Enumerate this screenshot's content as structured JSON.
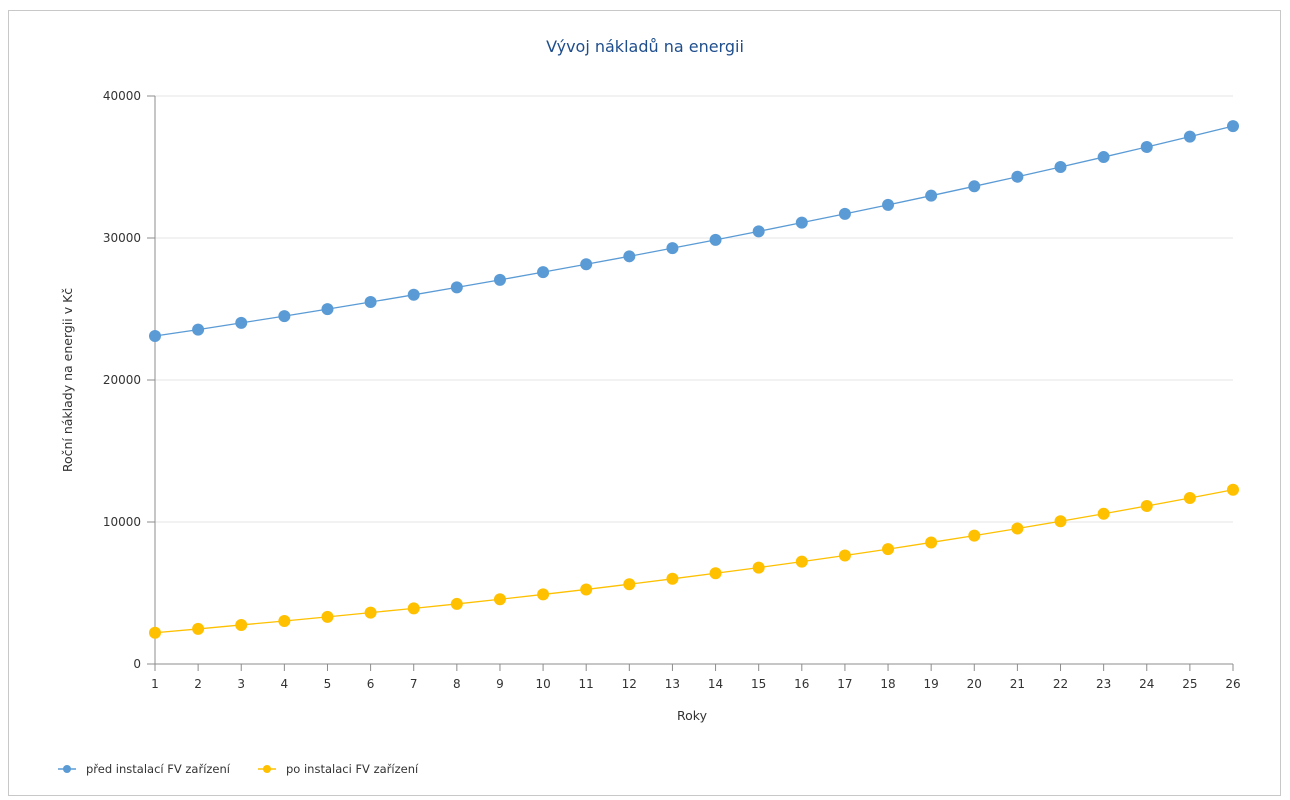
{
  "chart_data": {
    "type": "line",
    "title": "Vývoj nákladů na energii",
    "xlabel": "Roky",
    "ylabel": "Roční náklady na energii v Kč",
    "categories": [
      "1",
      "2",
      "3",
      "4",
      "5",
      "6",
      "7",
      "8",
      "9",
      "10",
      "11",
      "12",
      "13",
      "14",
      "15",
      "16",
      "17",
      "18",
      "19",
      "20",
      "21",
      "22",
      "23",
      "24",
      "25",
      "26"
    ],
    "ylim": [
      0,
      40000
    ],
    "yticks": [
      "0",
      "10000",
      "20000",
      "30000",
      "40000"
    ],
    "grid": "horizontal",
    "legend_position": "bottom-left",
    "series": [
      {
        "name": "před instalací FV zařízení",
        "color": "#5b9bd5",
        "values": [
          23100,
          23550,
          24020,
          24500,
          24990,
          25490,
          26000,
          26520,
          27050,
          27600,
          28150,
          28710,
          29290,
          29870,
          30470,
          31080,
          31700,
          32330,
          32980,
          33640,
          34310,
          35000,
          35700,
          36410,
          37140,
          37880
        ]
      },
      {
        "name": "po instalaci FV zařízení",
        "color": "#ffc000",
        "values": [
          2200,
          2470,
          2750,
          3030,
          3320,
          3620,
          3920,
          4230,
          4560,
          4900,
          5250,
          5620,
          6000,
          6390,
          6790,
          7210,
          7640,
          8090,
          8560,
          9040,
          9540,
          10050,
          10580,
          11130,
          11690,
          12270
        ]
      }
    ]
  }
}
